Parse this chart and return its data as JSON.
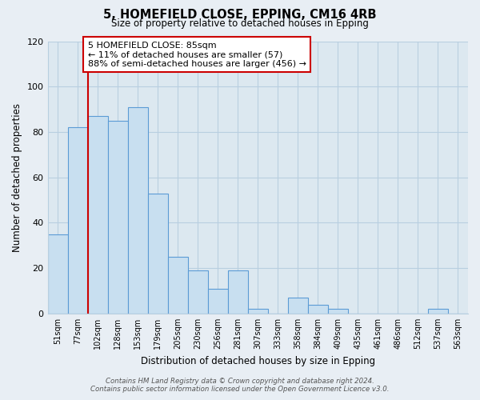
{
  "title": "5, HOMEFIELD CLOSE, EPPING, CM16 4RB",
  "subtitle": "Size of property relative to detached houses in Epping",
  "xlabel": "Distribution of detached houses by size in Epping",
  "ylabel": "Number of detached properties",
  "categories": [
    "51sqm",
    "77sqm",
    "102sqm",
    "128sqm",
    "153sqm",
    "179sqm",
    "205sqm",
    "230sqm",
    "256sqm",
    "281sqm",
    "307sqm",
    "333sqm",
    "358sqm",
    "384sqm",
    "409sqm",
    "435sqm",
    "461sqm",
    "486sqm",
    "512sqm",
    "537sqm",
    "563sqm"
  ],
  "values": [
    35,
    82,
    87,
    85,
    91,
    53,
    25,
    19,
    11,
    19,
    2,
    0,
    7,
    4,
    2,
    0,
    0,
    0,
    0,
    2,
    0
  ],
  "bar_color": "#c8dff0",
  "bar_edge_color": "#5b9bd5",
  "annotation_line_color": "#cc0000",
  "annotation_box_text": "5 HOMEFIELD CLOSE: 85sqm\n← 11% of detached houses are smaller (57)\n88% of semi-detached houses are larger (456) →",
  "annotation_box_color": "#ffffff",
  "annotation_box_edge_color": "#cc0000",
  "ylim": [
    0,
    120
  ],
  "yticks": [
    0,
    20,
    40,
    60,
    80,
    100,
    120
  ],
  "footer_text": "Contains HM Land Registry data © Crown copyright and database right 2024.\nContains public sector information licensed under the Open Government Licence v3.0.",
  "bg_color": "#e8eef4",
  "plot_bg_color": "#dce8f0",
  "grid_color": "#b8cfe0"
}
